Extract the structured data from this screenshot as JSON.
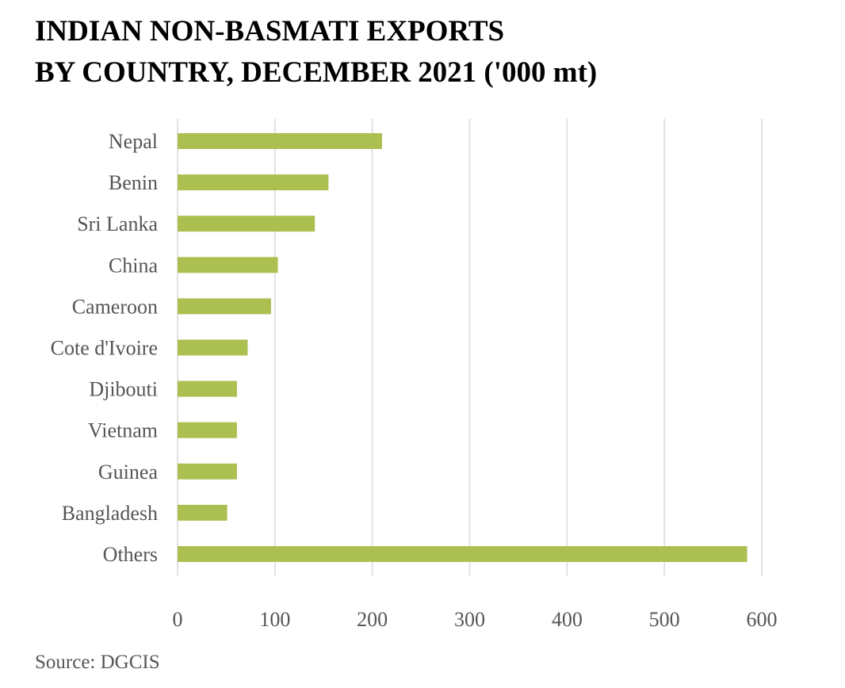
{
  "title_lines": [
    "INDIAN NON-BASMATI EXPORTS",
    "BY COUNTRY, DECEMBER 2021 ('000 mt)"
  ],
  "source": "Source: DGCIS",
  "colors": {
    "bar": "#acc051",
    "grid": "#e2e2e2",
    "label": "#555555",
    "title": "#000000"
  },
  "chart_data": {
    "type": "bar",
    "orientation": "horizontal",
    "categories": [
      "Nepal",
      "Benin",
      "Sri Lanka",
      "China",
      "Cameroon",
      "Cote d'Ivoire",
      "Djibouti",
      "Vietnam",
      "Guinea",
      "Bangladesh",
      "Others"
    ],
    "values": [
      210,
      155,
      141,
      103,
      96,
      72,
      61,
      61,
      61,
      51,
      585
    ],
    "xlim": [
      0,
      600
    ],
    "xticks": [
      0,
      100,
      200,
      300,
      400,
      500,
      600
    ],
    "grid": true,
    "legend": "none"
  }
}
